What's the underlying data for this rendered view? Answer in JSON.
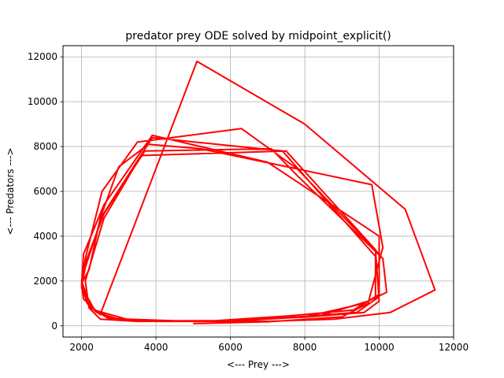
{
  "chart_data": {
    "type": "line",
    "title": "predator prey ODE solved by midpoint_explicit()",
    "xlabel": "<--- Prey --->",
    "ylabel": "<--- Predators --->",
    "xlim": [
      1500,
      12000
    ],
    "ylim": [
      -500,
      12500
    ],
    "xticks": [
      2000,
      4000,
      6000,
      8000,
      10000,
      12000
    ],
    "yticks": [
      0,
      2000,
      4000,
      6000,
      8000,
      10000,
      12000
    ],
    "grid": true,
    "series": [
      {
        "color": "#ff0000",
        "x": [
          5000,
          7000,
          9000,
          9700,
          10000,
          10100,
          9800,
          7800,
          5200,
          3800,
          3000,
          2500,
          2200,
          2000,
          2050,
          2500,
          5100,
          8000,
          10700,
          11500,
          10300,
          8800,
          7000,
          5000,
          3200,
          2350,
          2150,
          2000,
          2100,
          2550,
          3500,
          6300,
          7800,
          10000,
          10000,
          9600,
          8000,
          6000,
          4000,
          2700,
          2200,
          2000,
          2100,
          2600,
          3700,
          7100,
          7800,
          10100,
          10200,
          9700,
          8400,
          6000,
          4000,
          2800,
          2200,
          2000,
          2050,
          2600,
          3900,
          7000,
          10000,
          10000,
          9400,
          7800,
          5600,
          3500,
          2500,
          2200,
          2100,
          2600,
          3600,
          7500,
          9900,
          10000,
          9600,
          8100,
          6000,
          4000,
          3000,
          2400,
          2150,
          2000,
          2100,
          2550,
          3900,
          7400,
          9900,
          9900,
          9300,
          7600,
          5600,
          3700,
          2700,
          2250,
          2100
        ],
        "y": [
          100,
          180,
          400,
          1000,
          2900,
          3500,
          6300,
          7000,
          7900,
          8100,
          7100,
          4800,
          2500,
          1900,
          1200,
          500,
          11800,
          9000,
          5200,
          1600,
          600,
          300,
          200,
          200,
          300,
          700,
          1300,
          2000,
          3000,
          6000,
          8200,
          8800,
          7000,
          3200,
          1400,
          1000,
          400,
          220,
          220,
          350,
          900,
          1700,
          2800,
          5000,
          7800,
          7900,
          6700,
          3000,
          1500,
          1100,
          450,
          200,
          200,
          350,
          850,
          1800,
          3200,
          5400,
          8500,
          7300,
          4000,
          1300,
          600,
          400,
          220,
          200,
          300,
          800,
          2000,
          4800,
          7600,
          7800,
          3400,
          1100,
          600,
          400,
          220,
          200,
          300,
          600,
          1000,
          1800,
          2600,
          4900,
          8400,
          7800,
          3100,
          1300,
          700,
          450,
          230,
          220,
          350,
          800,
          1600
        ]
      }
    ]
  }
}
